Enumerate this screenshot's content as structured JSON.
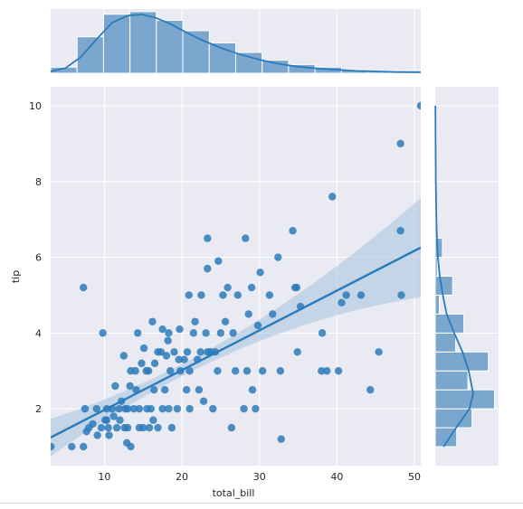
{
  "chart_data": {
    "type": "scatter",
    "title": "",
    "xlabel": "total_bill",
    "ylabel": "tip",
    "xlim": [
      3.07,
      50.81
    ],
    "ylim": [
      0.5,
      10.5
    ],
    "grid": true,
    "xticks": [
      10,
      20,
      30,
      40,
      50
    ],
    "yticks": [
      2,
      4,
      6,
      8,
      10
    ],
    "colors": {
      "background": "#eaeaf2",
      "points": "#2b7bba",
      "regression_line": "#2b7bba",
      "confidence_band": "#a6c3e0",
      "histogram_fill": "#7ba7cf",
      "histogram_edge": "#ffffff"
    },
    "regression": {
      "slope": 0.105,
      "intercept": 0.92
    },
    "points": [
      [
        3.1,
        1.0
      ],
      [
        5.8,
        1.0
      ],
      [
        7.3,
        1.0
      ],
      [
        8.0,
        1.5
      ],
      [
        9.1,
        1.3
      ],
      [
        7.3,
        5.2
      ],
      [
        7.5,
        2.0
      ],
      [
        7.7,
        1.4
      ],
      [
        8.5,
        1.6
      ],
      [
        9.0,
        2.0
      ],
      [
        9.6,
        1.5
      ],
      [
        9.8,
        4.0
      ],
      [
        10.1,
        1.7
      ],
      [
        10.3,
        1.7
      ],
      [
        10.3,
        2.0
      ],
      [
        10.5,
        1.5
      ],
      [
        10.6,
        1.3
      ],
      [
        11.0,
        2.0
      ],
      [
        11.2,
        1.8
      ],
      [
        11.4,
        2.6
      ],
      [
        11.6,
        1.5
      ],
      [
        11.9,
        2.0
      ],
      [
        12.0,
        1.7
      ],
      [
        12.2,
        2.2
      ],
      [
        12.5,
        3.4
      ],
      [
        12.6,
        1.5
      ],
      [
        12.7,
        2.0
      ],
      [
        12.9,
        1.1
      ],
      [
        13.0,
        1.5
      ],
      [
        13.0,
        2.0
      ],
      [
        13.3,
        2.6
      ],
      [
        13.4,
        3.0
      ],
      [
        13.4,
        1.0
      ],
      [
        13.8,
        2.0
      ],
      [
        14.0,
        3.0
      ],
      [
        14.1,
        2.5
      ],
      [
        14.3,
        4.0
      ],
      [
        14.5,
        2.0
      ],
      [
        14.5,
        1.5
      ],
      [
        14.8,
        3.2
      ],
      [
        15.0,
        1.5
      ],
      [
        15.1,
        3.6
      ],
      [
        15.4,
        3.0
      ],
      [
        15.5,
        2.0
      ],
      [
        15.7,
        3.0
      ],
      [
        15.8,
        1.5
      ],
      [
        16.0,
        2.0
      ],
      [
        16.2,
        4.3
      ],
      [
        16.3,
        1.7
      ],
      [
        16.4,
        2.5
      ],
      [
        16.5,
        3.2
      ],
      [
        16.9,
        3.5
      ],
      [
        16.9,
        1.5
      ],
      [
        17.3,
        3.5
      ],
      [
        17.5,
        2.0
      ],
      [
        17.5,
        4.1
      ],
      [
        17.8,
        2.5
      ],
      [
        18.0,
        3.4
      ],
      [
        18.2,
        3.8
      ],
      [
        18.3,
        2.0
      ],
      [
        18.3,
        4.0
      ],
      [
        18.5,
        3.0
      ],
      [
        18.7,
        1.5
      ],
      [
        19.0,
        3.5
      ],
      [
        19.4,
        2.0
      ],
      [
        19.6,
        3.3
      ],
      [
        19.7,
        4.1
      ],
      [
        19.8,
        3.0
      ],
      [
        20.3,
        3.3
      ],
      [
        20.6,
        2.5
      ],
      [
        20.7,
        3.5
      ],
      [
        20.9,
        5.0
      ],
      [
        21.0,
        3.0
      ],
      [
        21.0,
        2.0
      ],
      [
        21.5,
        4.0
      ],
      [
        21.7,
        4.3
      ],
      [
        22.0,
        3.3
      ],
      [
        22.2,
        2.5
      ],
      [
        22.4,
        3.5
      ],
      [
        22.5,
        5.0
      ],
      [
        22.8,
        2.2
      ],
      [
        23.1,
        4.0
      ],
      [
        23.3,
        3.5
      ],
      [
        23.3,
        6.5
      ],
      [
        23.3,
        5.7
      ],
      [
        23.7,
        3.5
      ],
      [
        24.0,
        2.0
      ],
      [
        24.3,
        3.5
      ],
      [
        24.6,
        3.0
      ],
      [
        24.7,
        5.9
      ],
      [
        25.0,
        4.0
      ],
      [
        25.3,
        5.0
      ],
      [
        25.6,
        4.3
      ],
      [
        25.9,
        5.2
      ],
      [
        26.4,
        1.5
      ],
      [
        26.6,
        4.0
      ],
      [
        26.9,
        3.0
      ],
      [
        27.2,
        5.0
      ],
      [
        28.0,
        2.0
      ],
      [
        28.2,
        6.5
      ],
      [
        28.4,
        3.0
      ],
      [
        28.6,
        4.5
      ],
      [
        29.0,
        5.2
      ],
      [
        29.1,
        2.5
      ],
      [
        29.5,
        2.0
      ],
      [
        29.8,
        4.2
      ],
      [
        30.1,
        5.6
      ],
      [
        30.4,
        3.0
      ],
      [
        31.3,
        5.0
      ],
      [
        31.7,
        4.5
      ],
      [
        32.4,
        6.0
      ],
      [
        32.7,
        3.0
      ],
      [
        32.8,
        1.2
      ],
      [
        34.3,
        6.7
      ],
      [
        34.6,
        5.2
      ],
      [
        34.8,
        5.2
      ],
      [
        34.9,
        3.5
      ],
      [
        35.3,
        4.7
      ],
      [
        38.0,
        3.0
      ],
      [
        38.1,
        4.0
      ],
      [
        38.7,
        3.0
      ],
      [
        39.4,
        7.6
      ],
      [
        40.2,
        3.0
      ],
      [
        40.6,
        4.8
      ],
      [
        41.2,
        5.0
      ],
      [
        43.1,
        5.0
      ],
      [
        44.3,
        2.5
      ],
      [
        45.4,
        3.5
      ],
      [
        48.2,
        9.0
      ],
      [
        48.2,
        6.7
      ],
      [
        48.3,
        5.0
      ],
      [
        50.8,
        10.0
      ]
    ],
    "marginal_x": {
      "bin_edges": [
        3.07,
        6.48,
        9.89,
        13.3,
        16.71,
        20.12,
        23.53,
        26.94,
        30.35,
        33.76,
        37.17,
        40.58,
        43.99,
        47.4,
        50.81
      ],
      "counts": [
        7,
        42,
        68,
        71,
        61,
        49,
        35,
        24,
        15,
        10,
        7,
        4,
        2,
        3
      ],
      "kde": [
        [
          3.07,
          0.03
        ],
        [
          5.0,
          0.09
        ],
        [
          7.0,
          0.28
        ],
        [
          9.0,
          0.58
        ],
        [
          11.0,
          0.86
        ],
        [
          13.0,
          0.98
        ],
        [
          14.8,
          1.0
        ],
        [
          16.5,
          0.95
        ],
        [
          18.5,
          0.84
        ],
        [
          20.5,
          0.7
        ],
        [
          22.5,
          0.57
        ],
        [
          25.0,
          0.43
        ],
        [
          27.5,
          0.32
        ],
        [
          30.0,
          0.23
        ],
        [
          32.5,
          0.16
        ],
        [
          35.0,
          0.11
        ],
        [
          37.5,
          0.08
        ],
        [
          40.0,
          0.06
        ],
        [
          42.5,
          0.04
        ],
        [
          45.0,
          0.03
        ],
        [
          47.5,
          0.02
        ],
        [
          50.81,
          0.015
        ]
      ]
    },
    "marginal_y": {
      "bin_edges": [
        1.0,
        1.5,
        2.0,
        2.5,
        3.0,
        3.5,
        4.0,
        4.5,
        5.0,
        5.5,
        6.0,
        6.5,
        7.0,
        7.5,
        8.0,
        8.5,
        9.0,
        9.5,
        10.0
      ],
      "counts": [
        21,
        36,
        58,
        32,
        52,
        20,
        28,
        4,
        17,
        2,
        7,
        2,
        1,
        0,
        0,
        0,
        1,
        0
      ],
      "kde": [
        [
          1.0,
          0.22
        ],
        [
          1.5,
          0.55
        ],
        [
          2.0,
          0.9
        ],
        [
          2.4,
          1.0
        ],
        [
          3.0,
          0.88
        ],
        [
          3.5,
          0.72
        ],
        [
          4.0,
          0.5
        ],
        [
          4.5,
          0.3
        ],
        [
          5.0,
          0.2
        ],
        [
          5.5,
          0.12
        ],
        [
          6.0,
          0.07
        ],
        [
          6.5,
          0.045
        ],
        [
          7.0,
          0.03
        ],
        [
          8.0,
          0.015
        ],
        [
          9.0,
          0.01
        ],
        [
          10.0,
          0.005
        ]
      ]
    }
  }
}
